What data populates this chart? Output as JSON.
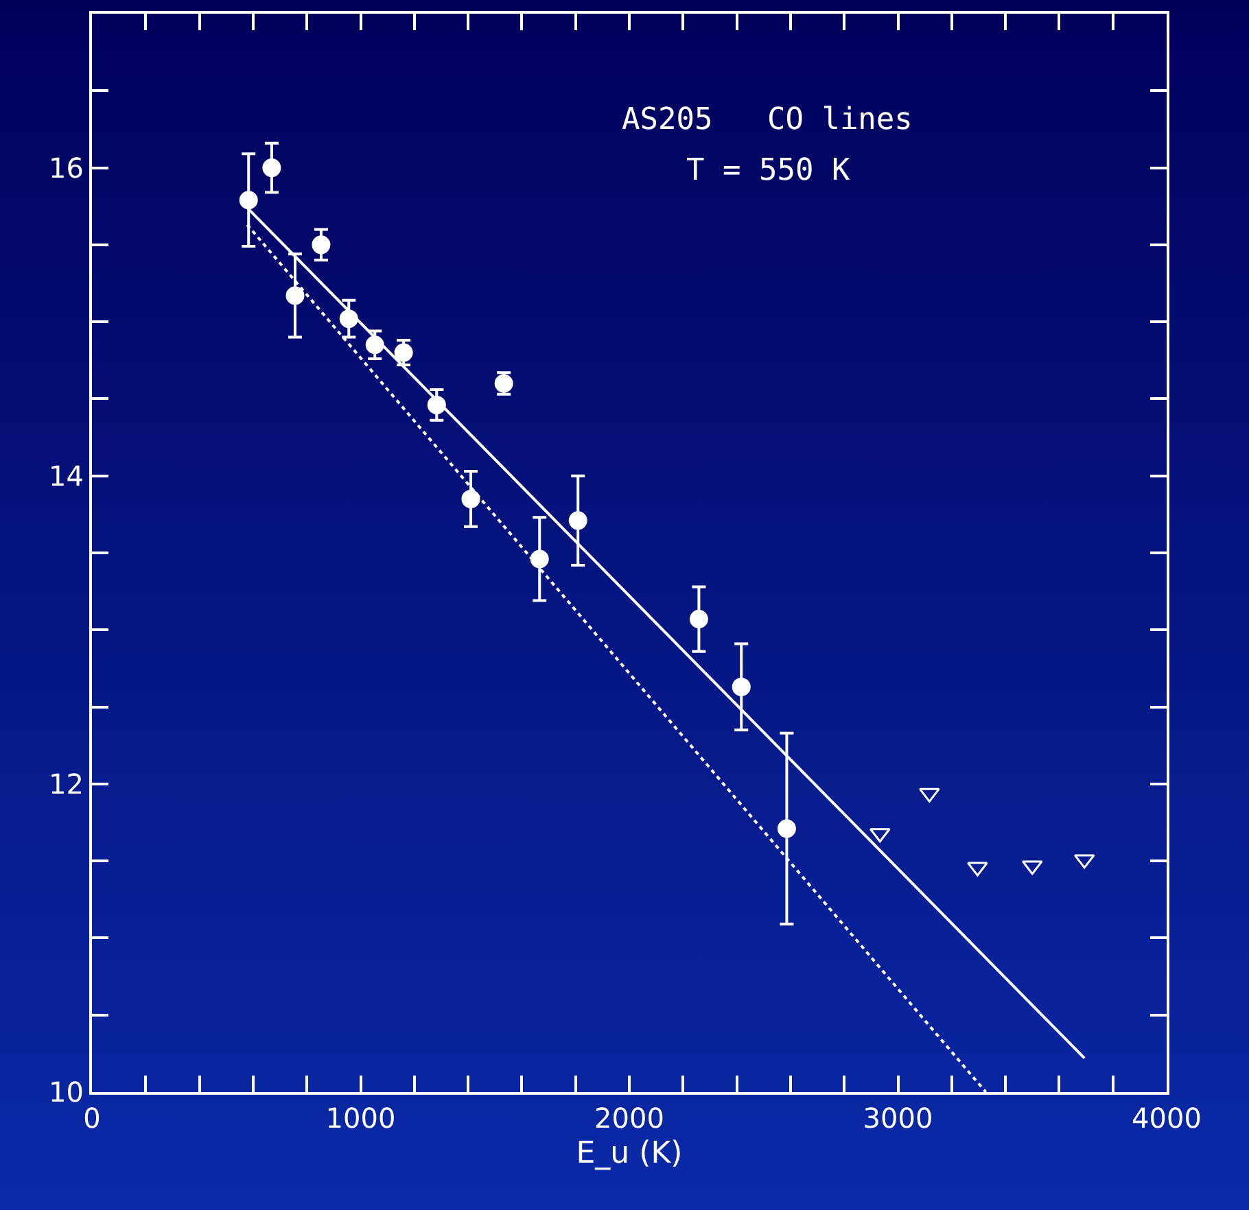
{
  "chart_data": {
    "type": "scatter",
    "xlabel": "E_u (K)",
    "xlim": [
      0,
      4000
    ],
    "ylim": [
      10,
      17
    ],
    "xticks": [
      0,
      {
        "value": 200,
        "label": null
      },
      {
        "value": 400,
        "label": null
      },
      {
        "value": 600,
        "label": null
      },
      {
        "value": 800,
        "label": null
      },
      1000,
      {
        "value": 1200,
        "label": null
      },
      {
        "value": 1400,
        "label": null
      },
      {
        "value": 1600,
        "label": null
      },
      {
        "value": 1800,
        "label": null
      },
      2000,
      {
        "value": 2200,
        "label": null
      },
      {
        "value": 2400,
        "label": null
      },
      {
        "value": 2600,
        "label": null
      },
      {
        "value": 2800,
        "label": null
      },
      3000,
      {
        "value": 3200,
        "label": null
      },
      {
        "value": 3400,
        "label": null
      },
      {
        "value": 3600,
        "label": null
      },
      {
        "value": 3800,
        "label": null
      },
      4000
    ],
    "yticks": [
      10,
      {
        "value": 10.5,
        "label": null
      },
      {
        "value": 11,
        "label": null
      },
      {
        "value": 11.5,
        "label": null
      },
      12,
      {
        "value": 12.5,
        "label": null
      },
      {
        "value": 13,
        "label": null
      },
      {
        "value": 13.5,
        "label": null
      },
      14,
      {
        "value": 14.5,
        "label": null
      },
      {
        "value": 15,
        "label": null
      },
      {
        "value": 15.5,
        "label": null
      },
      16,
      {
        "value": 16.5,
        "label": null
      },
      {
        "value": 17,
        "label": null
      }
    ],
    "grid": false,
    "annotations": [
      "AS205   CO lines",
      "T = 550 K"
    ],
    "series": [
      {
        "marker": "circle",
        "color": "#ffffff",
        "x": [
          583,
          669,
          756,
          853,
          956,
          1053,
          1160,
          1283,
          1410,
          1533,
          1666,
          1809,
          2259,
          2417,
          2586
        ],
        "values": [
          15.79,
          16.0,
          15.17,
          15.5,
          15.02,
          14.85,
          14.8,
          14.46,
          13.85,
          14.6,
          13.46,
          13.71,
          13.07,
          12.63,
          11.71
        ],
        "errors": [
          0.3,
          0.16,
          0.27,
          0.1,
          0.12,
          0.09,
          0.08,
          0.1,
          0.18,
          0.07,
          0.27,
          0.29,
          0.21,
          0.28,
          0.62
        ]
      },
      {
        "marker": "triangle",
        "color": "#ffffff",
        "x": [
          2933,
          3117,
          3296,
          3500,
          3694
        ],
        "values": [
          11.68,
          11.94,
          11.46,
          11.47,
          11.51
        ]
      },
      {
        "type": "line",
        "line_style": "solid",
        "color": "#ffffff",
        "x": [
          578,
          3694
        ],
        "values": [
          15.74,
          10.22
        ]
      },
      {
        "type": "line",
        "line_style": "dotted",
        "color": "#ffffff",
        "x": [
          578,
          3327
        ],
        "values": [
          15.63,
          10.0
        ]
      }
    ]
  }
}
